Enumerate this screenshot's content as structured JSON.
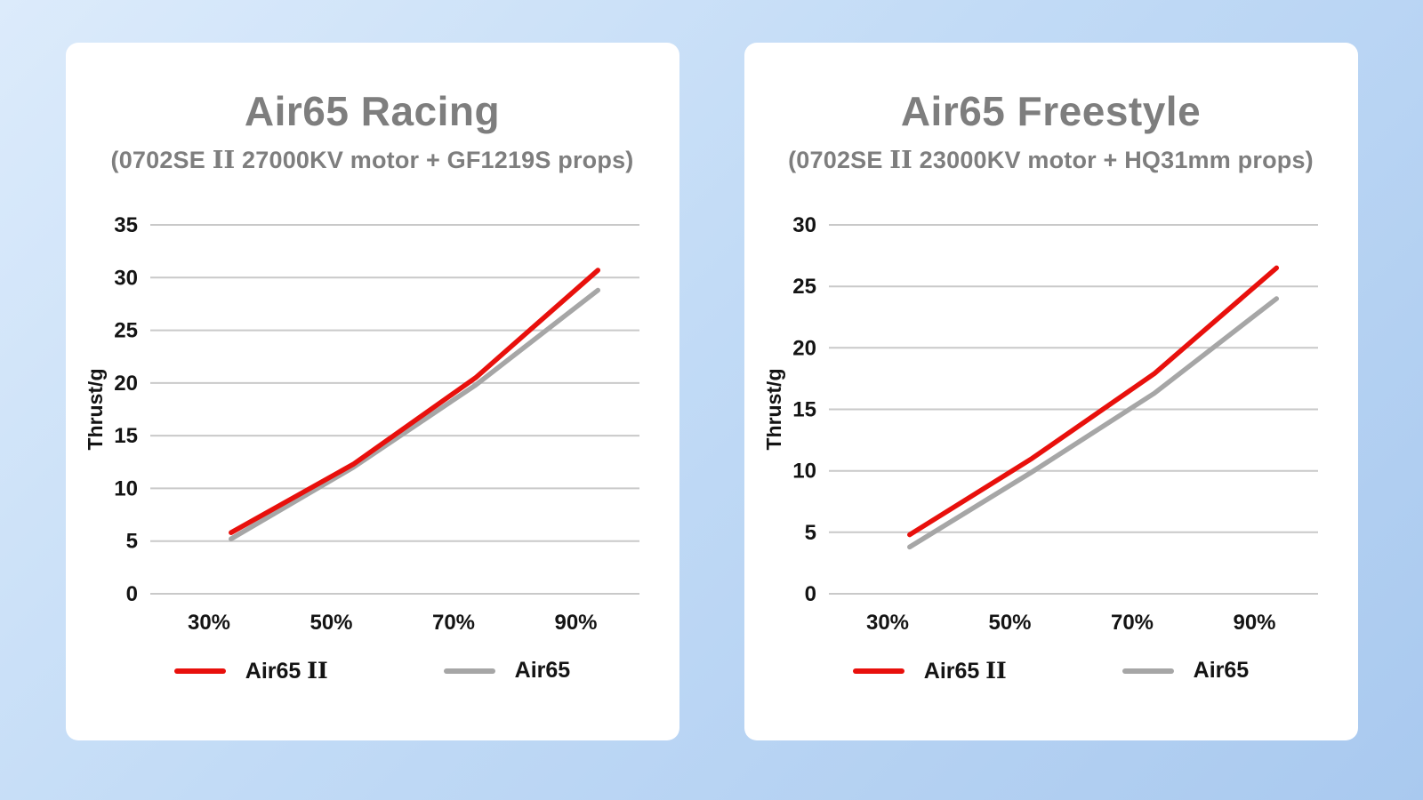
{
  "colors": {
    "accent_red": "#e8100c",
    "neutral_gray": "#a6a6a6",
    "grid_gray": "#c9c9c9",
    "title_gray": "#7e7e7e"
  },
  "chart_data": [
    {
      "type": "line",
      "title": "Air65 Racing",
      "subtitle": "(0702SE II 27000KV motor + GF1219S props)",
      "xlabel": "",
      "ylabel": "Thrust/g",
      "ylim": [
        0,
        35
      ],
      "yticks": [
        0,
        5,
        10,
        15,
        20,
        25,
        30,
        35
      ],
      "categories": [
        "30%",
        "50%",
        "70%",
        "90%"
      ],
      "grid": "horizontal",
      "legend_position": "bottom",
      "series": [
        {
          "name": "Air65 II",
          "color": "#e8100c",
          "values": [
            5.8,
            12.3,
            20.5,
            30.7
          ]
        },
        {
          "name": "Air65",
          "color": "#a6a6a6",
          "values": [
            5.2,
            12.0,
            19.8,
            28.8
          ]
        }
      ]
    },
    {
      "type": "line",
      "title": "Air65 Freestyle",
      "subtitle": "(0702SE II 23000KV motor + HQ31mm props)",
      "xlabel": "",
      "ylabel": "Thrust/g",
      "ylim": [
        0,
        30
      ],
      "yticks": [
        0,
        5,
        10,
        15,
        20,
        25,
        30
      ],
      "categories": [
        "30%",
        "50%",
        "70%",
        "90%"
      ],
      "grid": "horizontal",
      "legend_position": "bottom",
      "series": [
        {
          "name": "Air65 II",
          "color": "#e8100c",
          "values": [
            4.8,
            11.0,
            17.9,
            26.5
          ]
        },
        {
          "name": "Air65",
          "color": "#a6a6a6",
          "values": [
            3.8,
            9.9,
            16.3,
            24.0
          ]
        }
      ]
    }
  ]
}
